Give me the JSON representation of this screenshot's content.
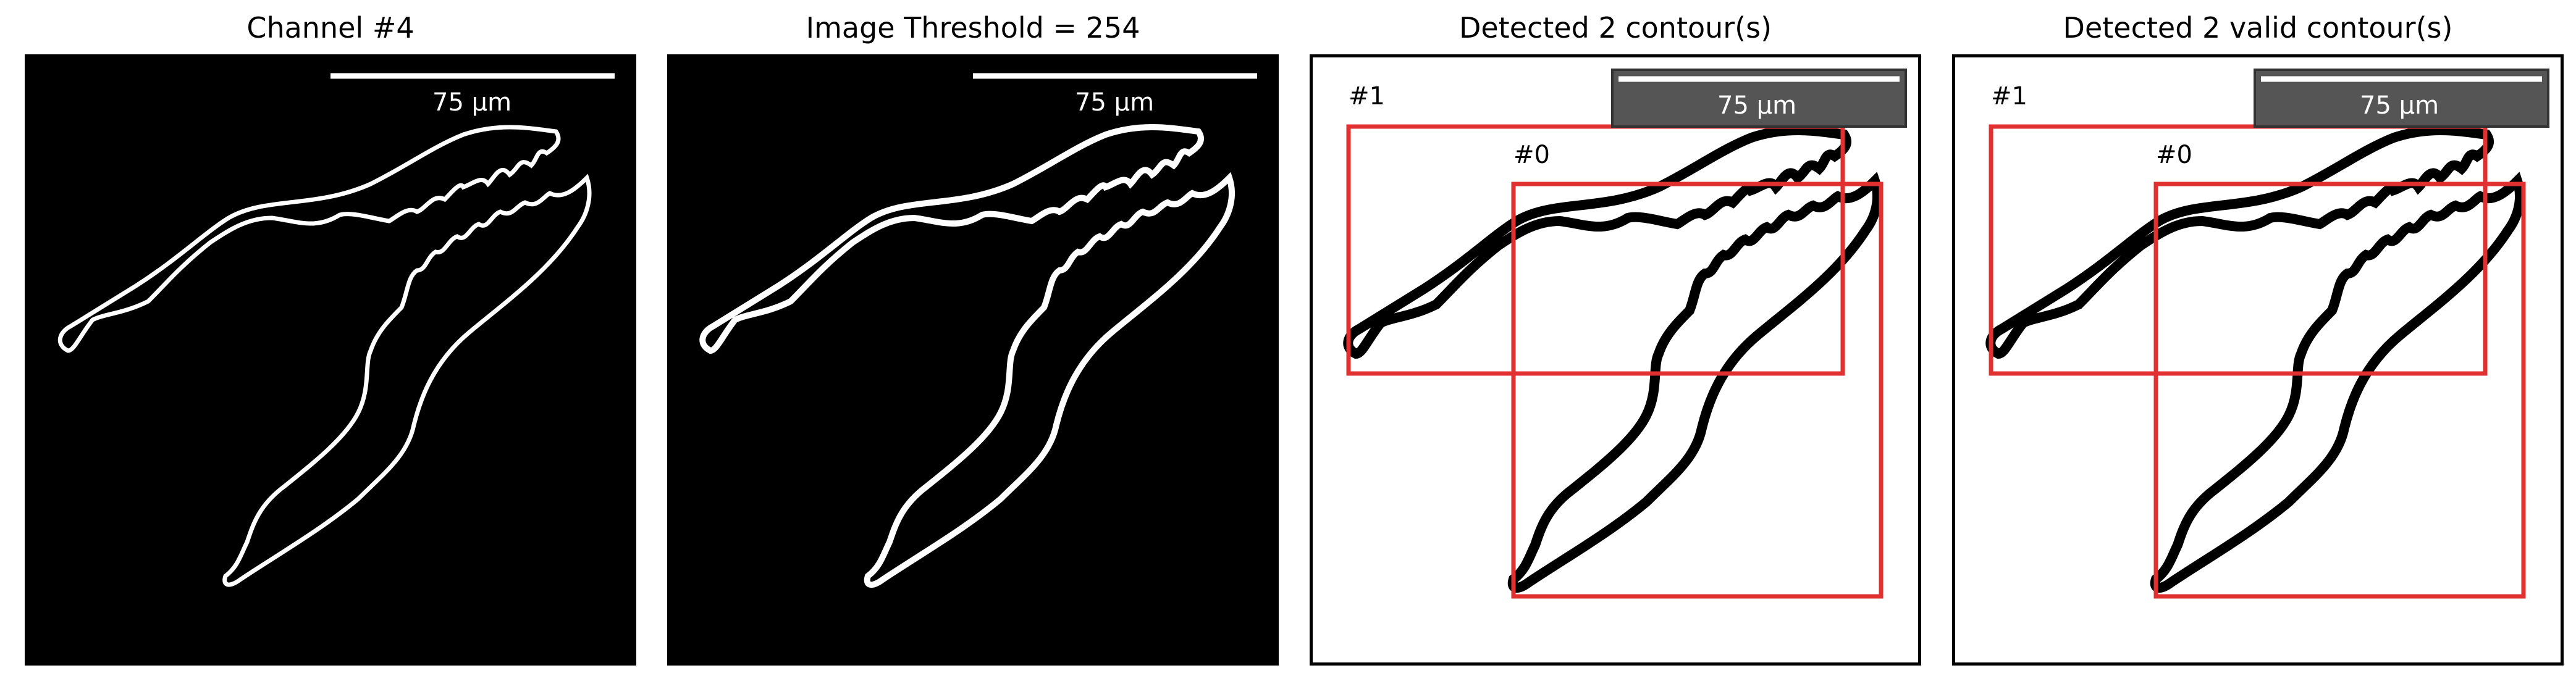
{
  "panels": [
    {
      "title": "Channel #4",
      "scale_label": "75 µm"
    },
    {
      "title": "Image Threshold = 254",
      "scale_label": "75 µm"
    },
    {
      "title": "Detected 2 contour(s)",
      "scale_label": "75 µm",
      "contour_labels": [
        "#1",
        "#0"
      ]
    },
    {
      "title": "Detected 2 valid contour(s)",
      "scale_label": "75 µm",
      "contour_labels": [
        "#1",
        "#0"
      ]
    }
  ],
  "colors": {
    "box": "#e03030",
    "scalebar_bg": "#555555",
    "outline_dark": "#ffffff",
    "outline_light": "#000000"
  }
}
